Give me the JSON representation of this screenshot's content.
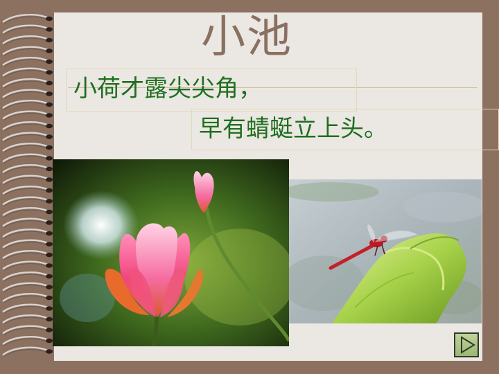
{
  "slide": {
    "title": "小池",
    "poem_line_1": "小荷才露尖尖角，",
    "poem_line_2": "早有蜻蜓立上头。"
  },
  "images": {
    "lotus": "lotus-photo",
    "dragonfly": "dragonfly-photo"
  },
  "navigation": {
    "next_icon": "play-next-icon"
  },
  "colors": {
    "background": "#8c7060",
    "paper": "#ebe7e2",
    "title": "#8a7061",
    "poem_text": "#1f6f1f",
    "next_button": "#a8c07e"
  }
}
